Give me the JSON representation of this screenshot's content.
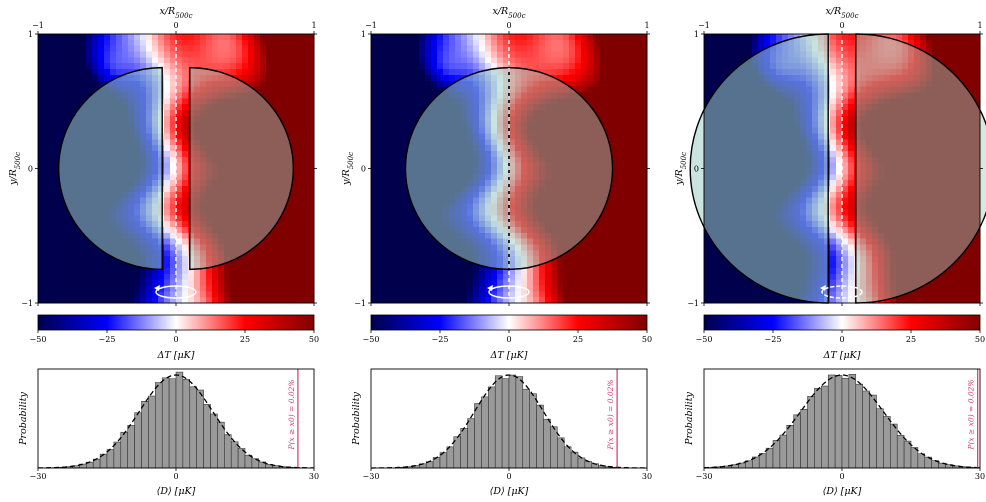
{
  "chart_data": [
    {
      "type": "heatmap",
      "panel": "left",
      "xlabel": "x/R500c",
      "ylabel": "y/R500c",
      "xlim": [
        -1,
        1
      ],
      "ylim": [
        -1,
        1
      ],
      "xticks": [
        "−1",
        "0",
        "1"
      ],
      "yticks": [
        "1",
        "0",
        "−1"
      ],
      "overlay": {
        "shape": "split semicircles with gap",
        "radius": 0.75,
        "offset": 0.1
      },
      "colorbar": {
        "label": "ΔT [μK]",
        "ticks": [
          "−50",
          "−25",
          "0",
          "25",
          "50"
        ],
        "range": [
          -50,
          50
        ],
        "colormap": "seismic"
      }
    },
    {
      "type": "heatmap",
      "panel": "middle",
      "xlabel": "x/R500c",
      "ylabel": "y/R500c",
      "xlim": [
        -1,
        1
      ],
      "ylim": [
        -1,
        1
      ],
      "xticks": [
        "−1",
        "0",
        "1"
      ],
      "yticks": [
        "1",
        "0",
        "−1"
      ],
      "overlay": {
        "shape": "circle split by vertical line",
        "radius": 0.75,
        "offset": 0.0
      },
      "colorbar": {
        "label": "ΔT [μK]",
        "ticks": [
          "−50",
          "−25",
          "0",
          "25",
          "50"
        ],
        "range": [
          -50,
          50
        ],
        "colormap": "seismic"
      }
    },
    {
      "type": "heatmap",
      "panel": "right",
      "xlabel": "x/R500c",
      "ylabel": "y/R500c",
      "xlim": [
        -1,
        1
      ],
      "ylim": [
        -1,
        1
      ],
      "xticks": [
        "−1",
        "0",
        "1"
      ],
      "yticks": [
        "1",
        "0",
        "−1"
      ],
      "overlay": {
        "shape": "split semicircles with gap",
        "radius": 1.0,
        "offset": 0.1
      },
      "colorbar": {
        "label": "ΔT [μK]",
        "ticks": [
          "−50",
          "−25",
          "0",
          "25",
          "50"
        ],
        "range": [
          -50,
          50
        ],
        "colormap": "seismic"
      }
    },
    {
      "type": "bar",
      "panel": "left-histogram",
      "ylabel": "Probability",
      "xlabel": "⟨D⟩ [μK]",
      "xlim": [
        -30,
        30
      ],
      "xticks": [
        "−30",
        "0",
        "30"
      ],
      "sigma": 8.0,
      "observed_line_x": 26.5,
      "annotation": "P(x ≥ x0) = 0.02%"
    },
    {
      "type": "bar",
      "panel": "middle-histogram",
      "ylabel": "Probability",
      "xlabel": "⟨D⟩ [μK]",
      "xlim": [
        -30,
        30
      ],
      "xticks": [
        "−30",
        "0",
        "30"
      ],
      "sigma": 7.5,
      "observed_line_x": 23.5,
      "annotation": "P(x ≥ x0) = 0.02%"
    },
    {
      "type": "bar",
      "panel": "right-histogram",
      "ylabel": "Probability",
      "xlabel": "⟨D⟩ [μK]",
      "xlim": [
        -30,
        30
      ],
      "xticks": [
        "−30",
        "0",
        "30"
      ],
      "sigma": 9.0,
      "observed_line_x": 29.5,
      "annotation": "P(x ≥ x0) = 0.02%"
    }
  ],
  "colors": {
    "overlay_fill": "#9ed0c4",
    "marker": "#d6336c",
    "bar": "#9a9a9a"
  }
}
